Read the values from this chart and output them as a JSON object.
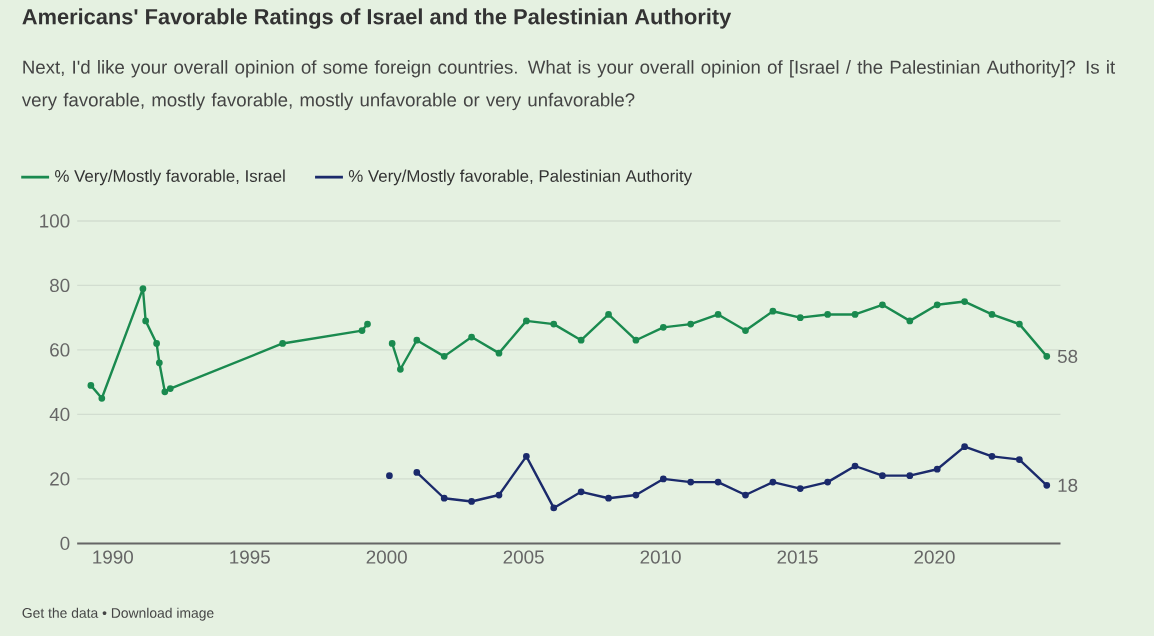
{
  "chart_data": {
    "type": "line",
    "title": "Americans' Favorable Ratings of Israel and the Palestinian Authority",
    "subtitle": "Next, I'd like your overall opinion of some foreign countries. What is your overall opinion of [Israel / the Palestinian Authority]? Is it very favorable, mostly favorable, mostly unfavorable or very unfavorable?",
    "series": [
      {
        "name": "% Very/Mostly favorable, Israel",
        "color": "#1a8a4f",
        "x": [
          1989.2,
          1989.6,
          1991.1,
          1991.2,
          1991.6,
          1991.7,
          1991.9,
          1992.1,
          1996.2,
          1999.1,
          1999.3,
          null,
          2000.2,
          2000.5,
          2001.1,
          2002.1,
          2003.1,
          2004.1,
          2005.1,
          2006.1,
          2007.1,
          2008.1,
          2009.1,
          2010.1,
          2011.1,
          2012.1,
          2013.1,
          2014.1,
          2015.1,
          2016.1,
          2017.1,
          2018.1,
          2019.1,
          2020.1,
          2021.1,
          2022.1,
          2023.1,
          2024.1
        ],
        "values": [
          49,
          45,
          79,
          69,
          62,
          56,
          47,
          48,
          62,
          66,
          68,
          null,
          62,
          54,
          63,
          58,
          64,
          59,
          69,
          68,
          63,
          71,
          63,
          67,
          68,
          71,
          66,
          72,
          70,
          71,
          71,
          74,
          69,
          74,
          75,
          71,
          68,
          58
        ]
      },
      {
        "name": "% Very/Mostly favorable, Palestinian Authority",
        "color": "#1b2a6b",
        "x": [
          2000.1,
          null,
          2001.1,
          2002.1,
          2003.1,
          2004.1,
          2005.1,
          2006.1,
          2007.1,
          2008.1,
          2009.1,
          2010.1,
          2011.1,
          2012.1,
          2013.1,
          2014.1,
          2015.1,
          2016.1,
          2017.1,
          2018.1,
          2019.1,
          2020.1,
          2021.1,
          2022.1,
          2023.1,
          2024.1
        ],
        "values": [
          21,
          null,
          22,
          14,
          13,
          15,
          27,
          11,
          16,
          14,
          15,
          20,
          19,
          19,
          15,
          19,
          17,
          19,
          24,
          21,
          21,
          23,
          30,
          27,
          26,
          18
        ]
      }
    ],
    "xlim": [
      1988.7,
      2024.6
    ],
    "xticks": [
      1990,
      1995,
      2000,
      2005,
      2010,
      2015,
      2020
    ],
    "ylim": [
      0,
      100
    ],
    "yticks": [
      0,
      20,
      40,
      60,
      80,
      100
    ],
    "grid": "y",
    "legend": "top",
    "marker": "circle",
    "line_style": "solid",
    "annotations": [
      {
        "text": "58",
        "x": 2024.1,
        "y": 58
      },
      {
        "text": "18",
        "x": 2024.1,
        "y": 18
      },
      "Get the data • Download image"
    ]
  }
}
